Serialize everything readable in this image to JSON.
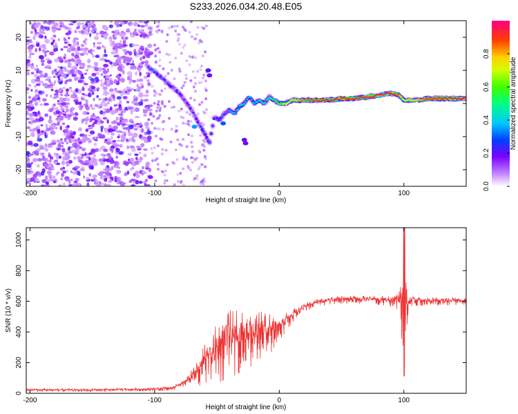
{
  "chart_data": [
    {
      "type": "heatmap",
      "title": "S233.2026.034.20.48.E05",
      "xlabel": "Height of straight line (km)",
      "ylabel": "Frequency (Hz)",
      "xlim": [
        -203,
        150
      ],
      "ylim": [
        -25,
        25
      ],
      "xticks": [
        -200,
        -100,
        0,
        100
      ],
      "yticks": [
        -20,
        -10,
        0,
        10,
        20
      ],
      "colorbar": {
        "label": "Normalized spectral amplitude",
        "range": [
          0,
          1
        ],
        "ticks": [
          0.0,
          0.2,
          0.4,
          0.6,
          0.8
        ],
        "tick_labels": [
          "0.0",
          "0.2",
          "0.4",
          "0.6",
          "0.8"
        ]
      },
      "ridge": {
        "description": "frequency of peak spectral amplitude vs height",
        "x": [
          -105,
          -98,
          -92,
          -86,
          -80,
          -76,
          -72,
          -66,
          -60,
          -56,
          -52,
          -48,
          -44,
          -40,
          -36,
          -32,
          -28,
          -24,
          -20,
          -16,
          -12,
          -8,
          -4,
          0,
          5,
          10,
          15,
          20,
          30,
          40,
          50,
          60,
          70,
          80,
          88,
          92,
          96,
          100,
          110,
          120,
          130,
          140,
          150
        ],
        "y": [
          11,
          9,
          7,
          5,
          3,
          1,
          -1,
          -5,
          -9,
          -12,
          -4,
          -5,
          -3,
          -2,
          -3,
          -1,
          0,
          2,
          0,
          1,
          0,
          2,
          1,
          0,
          0,
          1,
          1,
          1,
          1,
          1,
          1.5,
          1.5,
          2,
          2.5,
          3,
          3,
          2.5,
          1,
          1,
          1.5,
          1.5,
          1.5,
          1.5
        ],
        "amplitude": [
          0.3,
          0.3,
          0.28,
          0.27,
          0.26,
          0.26,
          0.26,
          0.28,
          0.3,
          0.32,
          0.3,
          0.3,
          0.32,
          0.36,
          0.4,
          0.45,
          0.45,
          0.4,
          0.4,
          0.45,
          0.5,
          0.5,
          0.55,
          0.6,
          0.7,
          0.75,
          0.8,
          0.85,
          0.9,
          0.95,
          0.92,
          0.9,
          0.93,
          0.96,
          0.97,
          0.95,
          0.85,
          0.7,
          0.78,
          0.9,
          0.92,
          0.95,
          0.95
        ]
      }
    },
    {
      "type": "line",
      "xlabel": "Height of straight line (km)",
      "ylabel": "SNR (10 * v/v)",
      "xlim": [
        -203,
        150
      ],
      "ylim": [
        0,
        1080
      ],
      "xticks": [
        -200,
        -100,
        0,
        100
      ],
      "yticks": [
        0,
        200,
        400,
        600,
        800,
        1000
      ],
      "color": "#ee3333",
      "series": [
        {
          "name": "SNR envelope",
          "x": [
            -203,
            -150,
            -100,
            -85,
            -80,
            -75,
            -70,
            -65,
            -60,
            -55,
            -50,
            -45,
            -40,
            -35,
            -30,
            -25,
            -20,
            -15,
            -10,
            -5,
            0,
            5,
            10,
            15,
            20,
            30,
            40,
            50,
            60,
            70,
            80,
            90,
            95,
            98,
            100,
            102,
            104,
            110,
            120,
            130,
            140,
            150
          ],
          "y": [
            20,
            20,
            25,
            35,
            50,
            70,
            100,
            140,
            180,
            220,
            260,
            290,
            310,
            330,
            340,
            350,
            360,
            380,
            390,
            400,
            420,
            460,
            500,
            530,
            555,
            590,
            605,
            610,
            610,
            610,
            605,
            600,
            600,
            560,
            480,
            560,
            600,
            600,
            600,
            598,
            600,
            600
          ],
          "noise": [
            10,
            10,
            12,
            15,
            20,
            30,
            60,
            90,
            140,
            160,
            200,
            220,
            230,
            220,
            200,
            190,
            170,
            160,
            150,
            120,
            90,
            60,
            45,
            35,
            30,
            28,
            28,
            28,
            28,
            28,
            30,
            40,
            80,
            200,
            380,
            220,
            60,
            30,
            28,
            28,
            28,
            28
          ]
        }
      ]
    }
  ]
}
